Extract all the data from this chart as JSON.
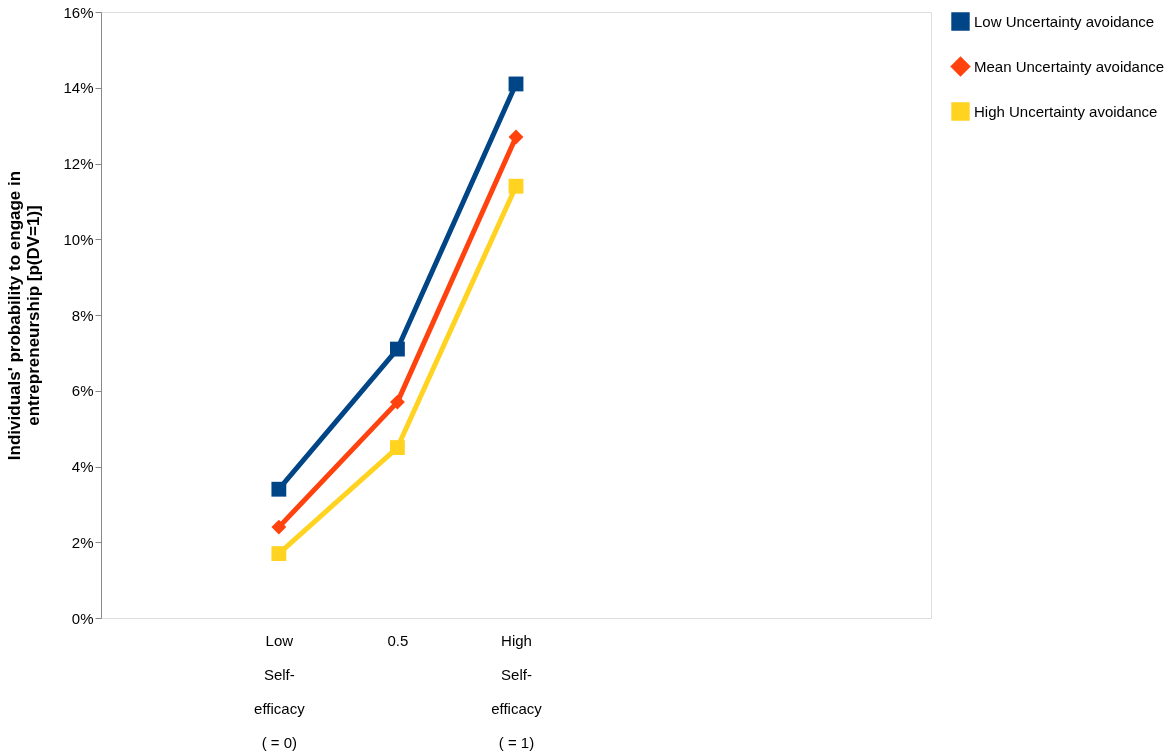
{
  "chart_data": {
    "type": "line",
    "ylabel": "Individuals' probability to engage in\nentrepreneurship [p(DV=1)]",
    "categories": [
      null,
      "Low\nSelf-\nefficacy\n( = 0)",
      "0.5",
      "High\nSelf-\nefficacy\n( = 1)",
      null,
      null,
      null
    ],
    "series": [
      {
        "name": "Low  Uncertainty avoidance",
        "color": "#004586",
        "marker": "square",
        "values": [
          null,
          3.4,
          7.1,
          14.1,
          null,
          null,
          null
        ]
      },
      {
        "name": "Mean Uncertainty avoidance",
        "color": "#ff420e",
        "marker": "diamond",
        "values": [
          null,
          2.4,
          5.7,
          12.7,
          null,
          null,
          null
        ]
      },
      {
        "name": "High Uncertainty avoidance",
        "color": "#ffd320",
        "marker": "square",
        "values": [
          null,
          1.7,
          4.5,
          11.4,
          null,
          null,
          null
        ]
      }
    ],
    "ylim": [
      0,
      16
    ],
    "yticks": [
      {
        "value": 0,
        "label": "0%"
      },
      {
        "value": 2,
        "label": "2%"
      },
      {
        "value": 4,
        "label": "4%"
      },
      {
        "value": 6,
        "label": "6%"
      },
      {
        "value": 8,
        "label": "8%"
      },
      {
        "value": 10,
        "label": "10%"
      },
      {
        "value": 12,
        "label": "12%"
      },
      {
        "value": 14,
        "label": "14%"
      },
      {
        "value": 16,
        "label": "16%"
      }
    ],
    "grid": false,
    "legend": "top right",
    "line_style": "solid"
  }
}
